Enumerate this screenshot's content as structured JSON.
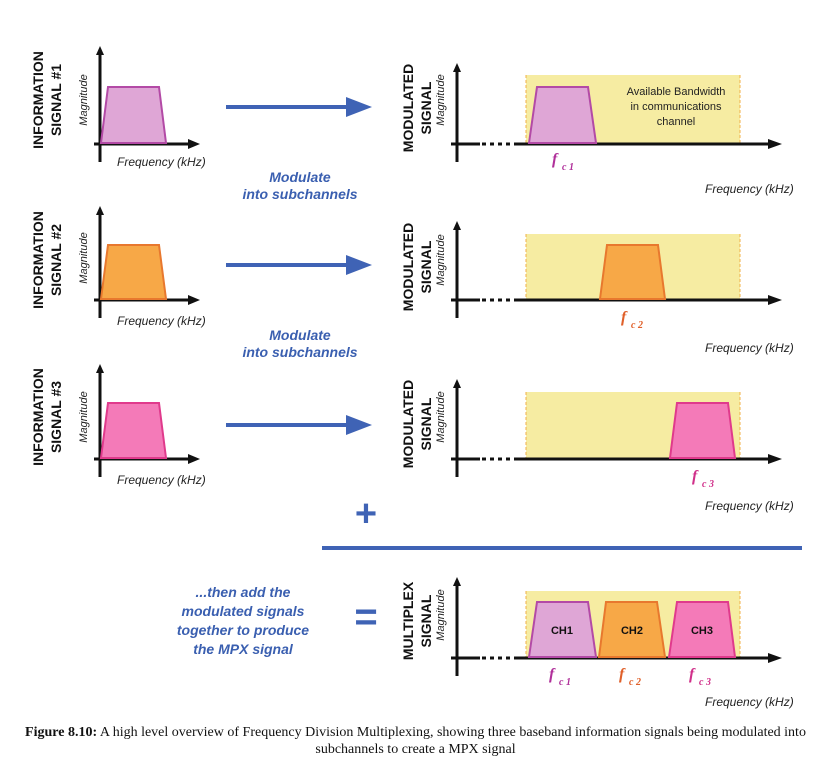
{
  "info_labels": [
    [
      "INFORMATION",
      "SIGNAL #1"
    ],
    [
      "INFORMATION",
      "SIGNAL #2"
    ],
    [
      "INFORMATION",
      "SIGNAL #3"
    ]
  ],
  "modulated_label": [
    "MODULATED",
    "SIGNAL"
  ],
  "multiplex_label": [
    "MULTIPLEX",
    "SIGNAL"
  ],
  "magnitude": "Magnitude",
  "frequency": "Frequency (kHz)",
  "modulate_text": [
    "Modulate",
    "into subchannels"
  ],
  "bandwidth_text": [
    "Available Bandwidth",
    "in communications",
    "channel"
  ],
  "fc_main": "f",
  "fc_subs": [
    "c 1",
    "c 2",
    "c 3"
  ],
  "plus": "+",
  "equals": "=",
  "then_add": [
    "...then add the",
    "modulated signals",
    "together to produce",
    "the MPX signal"
  ],
  "channels": [
    "CH1",
    "CH2",
    "CH3"
  ],
  "colors": {
    "ch1_fill": "#dfa6d6",
    "ch1_stroke": "#b34aa6",
    "ch2_fill": "#f7a847",
    "ch2_stroke": "#e8782e",
    "ch3_fill": "#f47ab8",
    "ch3_stroke": "#e03a8c",
    "band": "#f6eca2",
    "band_edge": "#f0b04a",
    "arrow": "#3f63b5",
    "fc1": "#b0309a",
    "fc2": "#e0602a",
    "fc3": "#d0308a"
  },
  "caption": {
    "label": "Figure 8.10:",
    "text": " A high level overview of Frequency Division Multiplexing, showing three baseband information signals being modulated into subchannels to create a MPX signal"
  }
}
